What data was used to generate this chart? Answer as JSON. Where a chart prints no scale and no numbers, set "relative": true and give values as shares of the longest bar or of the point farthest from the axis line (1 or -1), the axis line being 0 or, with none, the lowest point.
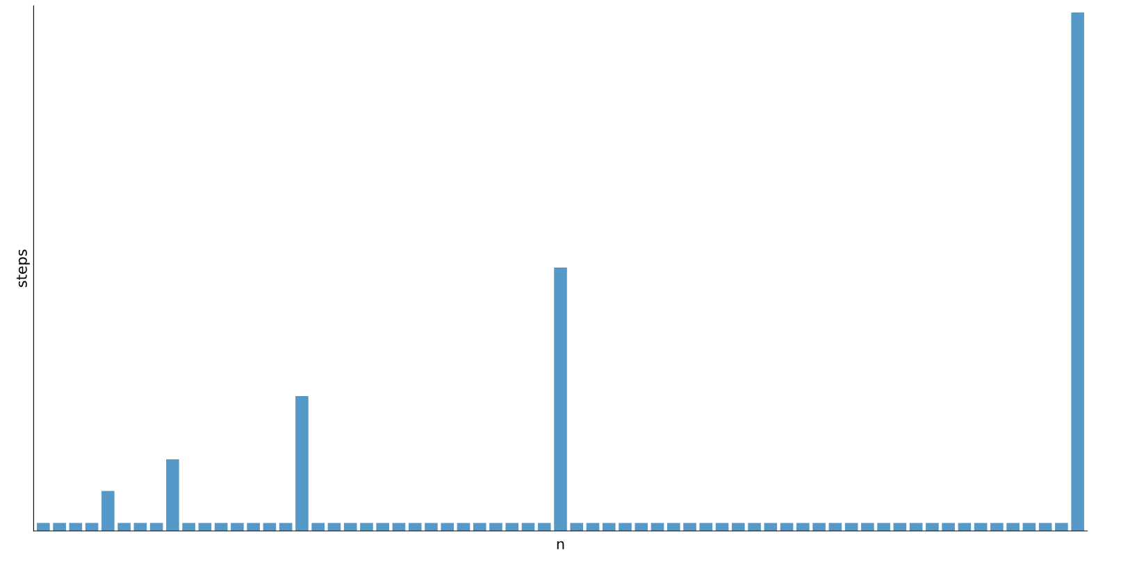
{
  "chart_data": {
    "type": "bar",
    "relative": true,
    "xlabel": "n",
    "ylabel": "steps",
    "color": "#5699c8",
    "categories": [
      null,
      null,
      null,
      null,
      null,
      null,
      null,
      null,
      null,
      null,
      null,
      null,
      null,
      null,
      null,
      null,
      null,
      null,
      null,
      null,
      null,
      null,
      null,
      null,
      null,
      null,
      null,
      null,
      null,
      null,
      null,
      null,
      null,
      null,
      null,
      null,
      null,
      null,
      null,
      null,
      null,
      null,
      null,
      null,
      null,
      null,
      null,
      null,
      null,
      null,
      null,
      null,
      null,
      null,
      null,
      null,
      null,
      null,
      null,
      null,
      null,
      null,
      null,
      null,
      null
    ],
    "values": [
      0.0154,
      0.0154,
      0.0154,
      0.0154,
      0.077,
      0.0154,
      0.0154,
      0.0154,
      0.138,
      0.0154,
      0.0154,
      0.0154,
      0.0154,
      0.0154,
      0.0154,
      0.0154,
      0.26,
      0.0154,
      0.0154,
      0.0154,
      0.0154,
      0.0154,
      0.0154,
      0.0154,
      0.0154,
      0.0154,
      0.0154,
      0.0154,
      0.0154,
      0.0154,
      0.0154,
      0.0154,
      0.508,
      0.0154,
      0.0154,
      0.0154,
      0.0154,
      0.0154,
      0.0154,
      0.0154,
      0.0154,
      0.0154,
      0.0154,
      0.0154,
      0.0154,
      0.0154,
      0.0154,
      0.0154,
      0.0154,
      0.0154,
      0.0154,
      0.0154,
      0.0154,
      0.0154,
      0.0154,
      0.0154,
      0.0154,
      0.0154,
      0.0154,
      0.0154,
      0.0154,
      0.0154,
      0.0154,
      0.0154,
      1
    ],
    "grid": false
  }
}
